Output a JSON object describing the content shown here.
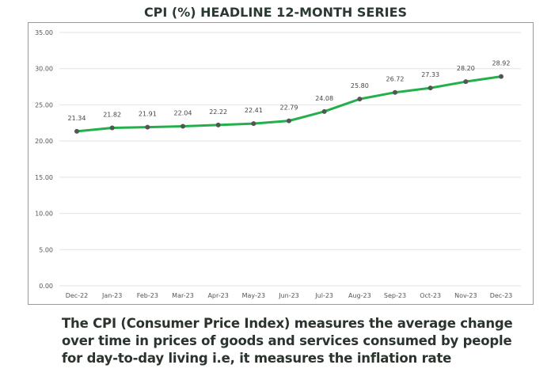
{
  "chart_data": {
    "type": "line",
    "title": "CPI (%)  HEADLINE 12-MONTH SERIES",
    "categories": [
      "Dec-22",
      "Jan-23",
      "Feb-23",
      "Mar-23",
      "Apr-23",
      "May-23",
      "Jun-23",
      "Jul-23",
      "Aug-23",
      "Sep-23",
      "Oct-23",
      "Nov-23",
      "Dec-23"
    ],
    "values": [
      21.34,
      21.82,
      21.91,
      22.04,
      22.22,
      22.41,
      22.79,
      24.08,
      25.8,
      26.72,
      27.33,
      28.2,
      28.92
    ],
    "value_labels": [
      "21.34",
      "21.82",
      "21.91",
      "22.04",
      "22.22",
      "22.41",
      "22.79",
      "24.08",
      "25.80",
      "26.72",
      "27.33",
      "28.20",
      "28.92"
    ],
    "ylim": [
      0,
      35
    ],
    "yticks": [
      "0.00",
      "5.00",
      "10.00",
      "15.00",
      "20.00",
      "25.00",
      "30.00",
      "35.00"
    ],
    "grid": true,
    "legend": "none",
    "line_color": "#22b04b",
    "marker_color": "#555555"
  },
  "caption": {
    "lines": [
      "The CPI (Consumer Price Index) measures the average change",
      "over time in prices of goods and services consumed by people",
      "for day-to-day living i.e, it measures the inflation rate"
    ]
  }
}
